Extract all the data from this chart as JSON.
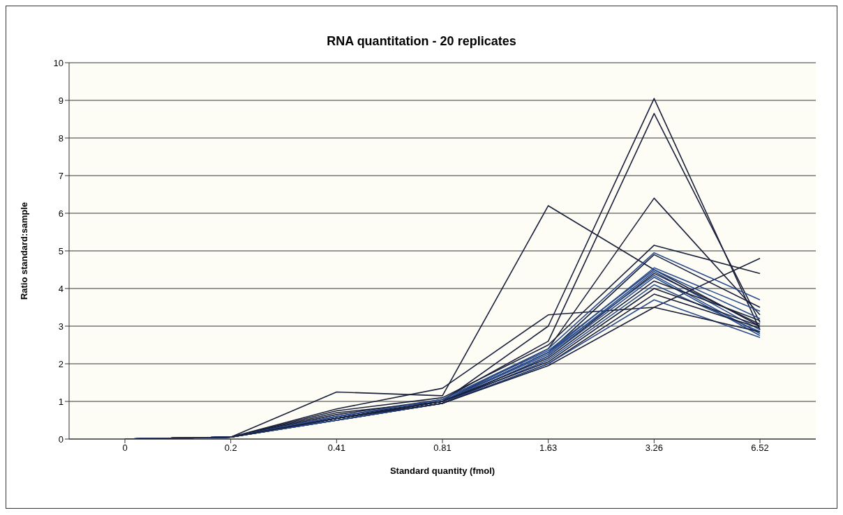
{
  "chart_data": {
    "type": "line",
    "title": "RNA quantitation - 20 replicates",
    "xlabel": "Standard quantity (fmol)",
    "ylabel": "Ratio standard:sample",
    "categories": [
      "0",
      "0.2",
      "0.41",
      "0.81",
      "1.63",
      "3.26",
      "6.52"
    ],
    "ylim": [
      0,
      10
    ],
    "yticks": [
      0,
      1,
      2,
      3,
      4,
      5,
      6,
      7,
      8,
      9,
      10
    ],
    "grid": "y",
    "marker": "none",
    "line_style": "solid",
    "series": [
      {
        "color": "#1a1f3a",
        "values": [
          0,
          0.05,
          0.7,
          1.0,
          3.0,
          9.05,
          2.9
        ]
      },
      {
        "color": "#1a1f3a",
        "values": [
          0,
          0.05,
          0.65,
          1.05,
          2.6,
          8.65,
          3.1
        ]
      },
      {
        "color": "#1a1f3a",
        "values": [
          0,
          0.05,
          0.6,
          1.0,
          2.4,
          6.4,
          3.3
        ]
      },
      {
        "color": "#1a1f3a",
        "values": [
          0,
          0.05,
          0.75,
          1.1,
          2.5,
          5.15,
          4.4
        ]
      },
      {
        "color": "#1a1f3a",
        "values": [
          0,
          0.05,
          1.25,
          1.15,
          6.2,
          4.5,
          3.0
        ]
      },
      {
        "color": "#1a1f3a",
        "values": [
          0,
          0.05,
          0.8,
          1.35,
          3.3,
          3.5,
          4.8
        ]
      },
      {
        "color": "#2b4c8c",
        "values": [
          0,
          0.05,
          0.6,
          1.05,
          2.4,
          4.95,
          3.7
        ]
      },
      {
        "color": "#1a1f3a",
        "values": [
          0,
          0.05,
          0.55,
          1.0,
          2.3,
          4.9,
          3.5
        ]
      },
      {
        "color": "#2b4c8c",
        "values": [
          0,
          0.05,
          0.55,
          1.0,
          2.3,
          4.55,
          3.4
        ]
      },
      {
        "color": "#2b4c8c",
        "values": [
          0,
          0.05,
          0.6,
          1.05,
          2.35,
          4.5,
          3.2
        ]
      },
      {
        "color": "#2b4c8c",
        "values": [
          0,
          0.05,
          0.55,
          1.0,
          2.25,
          4.45,
          2.9
        ]
      },
      {
        "color": "#1a1f3a",
        "values": [
          0,
          0.05,
          0.5,
          0.95,
          2.2,
          4.4,
          3.05
        ]
      },
      {
        "color": "#2b4c8c",
        "values": [
          0,
          0.05,
          0.55,
          1.0,
          2.3,
          4.35,
          2.8
        ]
      },
      {
        "color": "#2b4c8c",
        "values": [
          0,
          0.05,
          0.5,
          0.95,
          2.2,
          4.3,
          2.75
        ]
      },
      {
        "color": "#1a1f3a",
        "values": [
          0,
          0.05,
          0.55,
          1.0,
          2.15,
          4.2,
          3.15
        ]
      },
      {
        "color": "#2b4c8c",
        "values": [
          0,
          0.05,
          0.5,
          0.95,
          2.1,
          4.1,
          2.85
        ]
      },
      {
        "color": "#1a1f3a",
        "values": [
          0,
          0.05,
          0.55,
          1.0,
          2.05,
          4.0,
          3.0
        ]
      },
      {
        "color": "#1a1f3a",
        "values": [
          0,
          0.05,
          0.5,
          0.95,
          2.0,
          3.85,
          2.95
        ]
      },
      {
        "color": "#2b4c8c",
        "values": [
          0,
          0.05,
          0.5,
          0.95,
          2.0,
          3.7,
          2.7
        ]
      },
      {
        "color": "#1a1f3a",
        "values": [
          0,
          0.05,
          0.55,
          0.95,
          1.95,
          3.5,
          2.85
        ]
      }
    ]
  }
}
